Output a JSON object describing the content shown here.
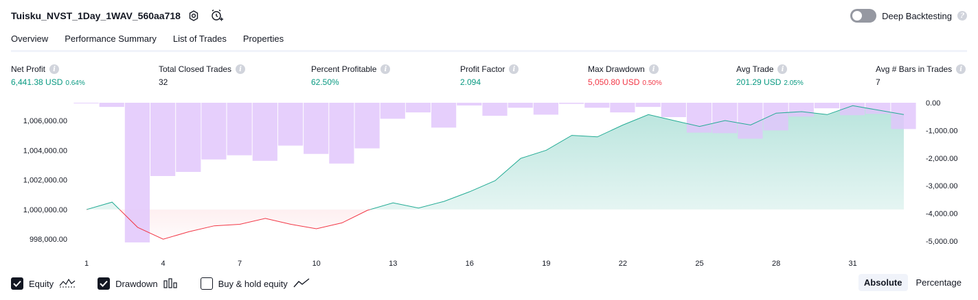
{
  "header": {
    "title": "Tuisku_NVST_1Day_1WAV_560aa718",
    "deep_backtesting_label": "Deep Backtesting",
    "deep_backtesting_enabled": false
  },
  "tabs": [
    {
      "label": "Overview",
      "active": true
    },
    {
      "label": "Performance Summary",
      "active": false
    },
    {
      "label": "List of Trades",
      "active": false
    },
    {
      "label": "Properties",
      "active": false
    }
  ],
  "metrics": {
    "net_profit": {
      "label": "Net Profit",
      "value": "6,441.38 USD",
      "pct": "0.64%"
    },
    "total_closed_trades": {
      "label": "Total Closed Trades",
      "value": "32"
    },
    "percent_profitable": {
      "label": "Percent Profitable",
      "value": "62.50%"
    },
    "profit_factor": {
      "label": "Profit Factor",
      "value": "2.094"
    },
    "max_drawdown": {
      "label": "Max Drawdown",
      "value": "5,050.80 USD",
      "pct": "0.50%"
    },
    "avg_trade": {
      "label": "Avg Trade",
      "value": "201.29 USD",
      "pct": "2.05%"
    },
    "avg_bars": {
      "label": "Avg # Bars in Trades",
      "value": "7"
    }
  },
  "colors": {
    "equity_line": "#22ab94",
    "equity_fill": "#22ab94",
    "below_baseline": "#f23645",
    "drawdown_bar": "#e1c4fb",
    "positive": "#089981",
    "negative": "#f23645"
  },
  "chart_data": {
    "type": "line",
    "x": [
      1,
      2,
      3,
      4,
      5,
      6,
      7,
      8,
      9,
      10,
      11,
      12,
      13,
      14,
      15,
      16,
      17,
      18,
      19,
      20,
      21,
      22,
      23,
      24,
      25,
      26,
      27,
      28,
      29,
      30,
      31,
      32,
      33
    ],
    "x_ticks": [
      "1",
      "4",
      "7",
      "10",
      "13",
      "16",
      "19",
      "22",
      "25",
      "28",
      "31"
    ],
    "series": [
      {
        "name": "Equity",
        "axis": "left",
        "values": [
          1000000,
          1000500,
          998800,
          998000,
          998500,
          998900,
          999000,
          999400,
          999000,
          998700,
          999100,
          999950,
          1000450,
          1000100,
          1000550,
          1001200,
          1001950,
          1003450,
          1004000,
          1005000,
          1004900,
          1005700,
          1006400,
          1006000,
          1005600,
          1006000,
          1005700,
          1006500,
          1006600,
          1006400,
          1007000,
          1006700,
          1006400
        ]
      },
      {
        "name": "Drawdown",
        "axis": "right",
        "type": "bar",
        "values": [
          -20,
          -150,
          -5050,
          -2650,
          -2500,
          -2050,
          -1900,
          -2100,
          -1550,
          -1850,
          -2200,
          -1650,
          -580,
          -350,
          -900,
          -100,
          -470,
          -180,
          -430,
          -40,
          -180,
          -350,
          -150,
          -520,
          -1080,
          -1100,
          -1300,
          -1000,
          -500,
          -200,
          -450,
          -400,
          -950
        ]
      }
    ],
    "left_axis": {
      "ylim": [
        997500,
        1007200
      ],
      "ticks": [
        "998,000.00",
        "1,000,000.00",
        "1,002,000.00",
        "1,004,000.00",
        "1,006,000.00"
      ],
      "tick_values": [
        998000,
        1000000,
        1002000,
        1004000,
        1006000
      ]
    },
    "right_axis": {
      "ylim": [
        -5200,
        0
      ],
      "ticks": [
        "0.00",
        "-1,000.00",
        "-2,000.00",
        "-3,000.00",
        "-4,000.00",
        "-5,000.00"
      ],
      "tick_values": [
        0,
        -1000,
        -2000,
        -3000,
        -4000,
        -5000
      ]
    },
    "baseline": 1000000,
    "grid": false
  },
  "legend": [
    {
      "label": "Equity",
      "checked": true,
      "icon": "equity-line-icon"
    },
    {
      "label": "Drawdown",
      "checked": true,
      "icon": "drawdown-bars-icon"
    },
    {
      "label": "Buy & hold equity",
      "checked": false,
      "icon": "buy-hold-line-icon"
    }
  ],
  "scale": {
    "options": [
      "Absolute",
      "Percentage"
    ],
    "active": "Absolute"
  }
}
